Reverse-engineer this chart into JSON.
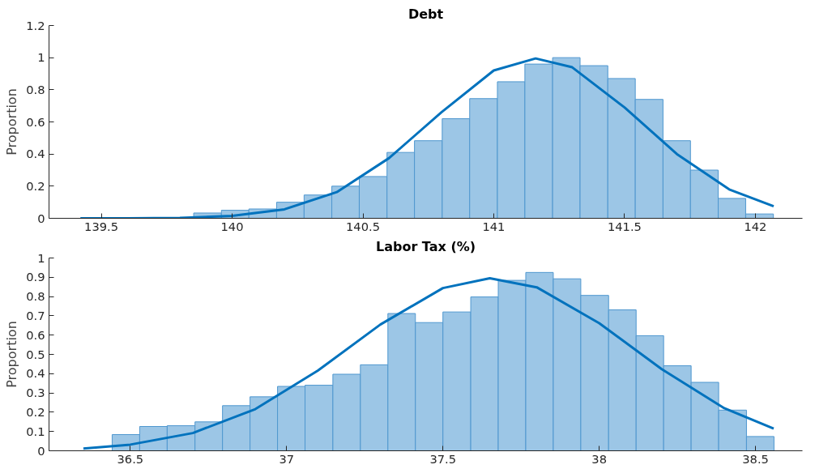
{
  "chart_data": [
    {
      "type": "histogram",
      "title": "Debt",
      "ylabel": "Proportion",
      "xlim": [
        139.3,
        142.18
      ],
      "xticks": [
        139.5,
        140,
        140.5,
        141,
        141.5,
        142
      ],
      "ylim": [
        0,
        1.2
      ],
      "yticks": [
        0,
        0.2,
        0.4,
        0.6,
        0.8,
        1,
        1.2
      ],
      "grid": false,
      "series": [
        {
          "color": "#9cc6e6",
          "bins": [
            139.853,
            139.959,
            140.064,
            140.17,
            140.275,
            140.381,
            140.486,
            140.592,
            140.697,
            140.803,
            140.908,
            141.014,
            141.119,
            141.225,
            141.33,
            141.436,
            141.541,
            141.647,
            141.752,
            141.858,
            141.963,
            142.069
          ],
          "values": [
            0.033,
            0.05,
            0.058,
            0.1,
            0.145,
            0.2,
            0.26,
            0.41,
            0.483,
            0.62,
            0.745,
            0.85,
            0.96,
            1.0,
            0.95,
            0.87,
            0.74,
            0.483,
            0.3,
            0.124,
            0.027
          ]
        },
        {
          "type": "line",
          "color": "#0072bd",
          "x": [
            139.42,
            139.6,
            139.8,
            140.0,
            140.2,
            140.4,
            140.6,
            140.8,
            141.0,
            141.16,
            141.3,
            141.5,
            141.7,
            141.9,
            142.07
          ],
          "values": [
            0,
            0,
            0.003,
            0.015,
            0.056,
            0.163,
            0.375,
            0.66,
            0.92,
            0.995,
            0.94,
            0.69,
            0.4,
            0.18,
            0.075
          ]
        }
      ]
    },
    {
      "type": "histogram",
      "title": "Labor Tax (%)",
      "ylabel": "Proportion",
      "xlim": [
        36.24,
        38.65
      ],
      "xticks": [
        36.5,
        37,
        37.5,
        38,
        38.5
      ],
      "ylim": [
        0,
        1
      ],
      "yticks": [
        0,
        0.1,
        0.2,
        0.3,
        0.4,
        0.5,
        0.6,
        0.7,
        0.8,
        0.9,
        1
      ],
      "grid": false,
      "series": [
        {
          "color": "#9cc6e6",
          "bins": [
            36.442,
            36.53,
            36.618,
            36.707,
            36.795,
            36.883,
            36.971,
            37.059,
            37.148,
            37.236,
            37.324,
            37.412,
            37.5,
            37.589,
            37.677,
            37.765,
            37.853,
            37.941,
            38.03,
            38.118,
            38.206,
            38.294,
            38.382,
            38.471,
            38.559
          ],
          "values": [
            0.084,
            0.126,
            0.13,
            0.15,
            0.234,
            0.28,
            0.334,
            0.34,
            0.397,
            0.446,
            0.712,
            0.665,
            0.72,
            0.798,
            0.884,
            0.925,
            0.892,
            0.806,
            0.731,
            0.597,
            0.441,
            0.355,
            0.211,
            0.074
          ]
        },
        {
          "type": "line",
          "color": "#0072bd",
          "x": [
            36.35,
            36.5,
            36.7,
            36.9,
            37.1,
            37.3,
            37.5,
            37.65,
            37.8,
            38.0,
            38.2,
            38.4,
            38.558
          ],
          "values": [
            0.012,
            0.032,
            0.092,
            0.216,
            0.416,
            0.655,
            0.844,
            0.895,
            0.848,
            0.662,
            0.423,
            0.221,
            0.115
          ]
        }
      ]
    }
  ]
}
